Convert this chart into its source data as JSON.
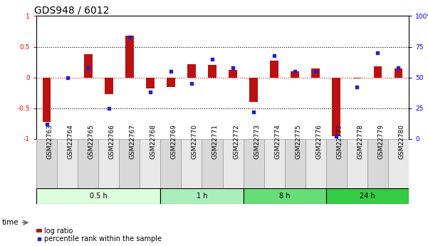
{
  "title": "GDS948 / 6012",
  "samples": [
    "GSM22763",
    "GSM22764",
    "GSM22765",
    "GSM22766",
    "GSM22767",
    "GSM22768",
    "GSM22769",
    "GSM22770",
    "GSM22771",
    "GSM22772",
    "GSM22773",
    "GSM22774",
    "GSM22775",
    "GSM22776",
    "GSM22777",
    "GSM22778",
    "GSM22779",
    "GSM22780"
  ],
  "log_ratio": [
    -0.72,
    0.0,
    0.38,
    -0.27,
    0.68,
    -0.18,
    -0.15,
    0.22,
    0.2,
    0.12,
    -0.4,
    0.27,
    0.1,
    0.15,
    -0.95,
    -0.02,
    0.18,
    0.15
  ],
  "percentile": [
    12,
    50,
    58,
    25,
    83,
    38,
    55,
    45,
    65,
    58,
    22,
    68,
    55,
    55,
    2,
    42,
    70,
    58
  ],
  "groups": [
    {
      "label": "0.5 h",
      "start": 0,
      "end": 6,
      "color": "#ddfbdd"
    },
    {
      "label": "1 h",
      "start": 6,
      "end": 10,
      "color": "#aaeebb"
    },
    {
      "label": "8 h",
      "start": 10,
      "end": 14,
      "color": "#66dd77"
    },
    {
      "label": "24 h",
      "start": 14,
      "end": 18,
      "color": "#33cc44"
    }
  ],
  "ylim_left": [
    -1,
    1
  ],
  "ylim_right": [
    0,
    100
  ],
  "bar_color": "#bb1111",
  "scatter_color": "#2222cc",
  "title_fontsize": 10,
  "tick_fontsize": 6.5,
  "label_fontsize": 7
}
